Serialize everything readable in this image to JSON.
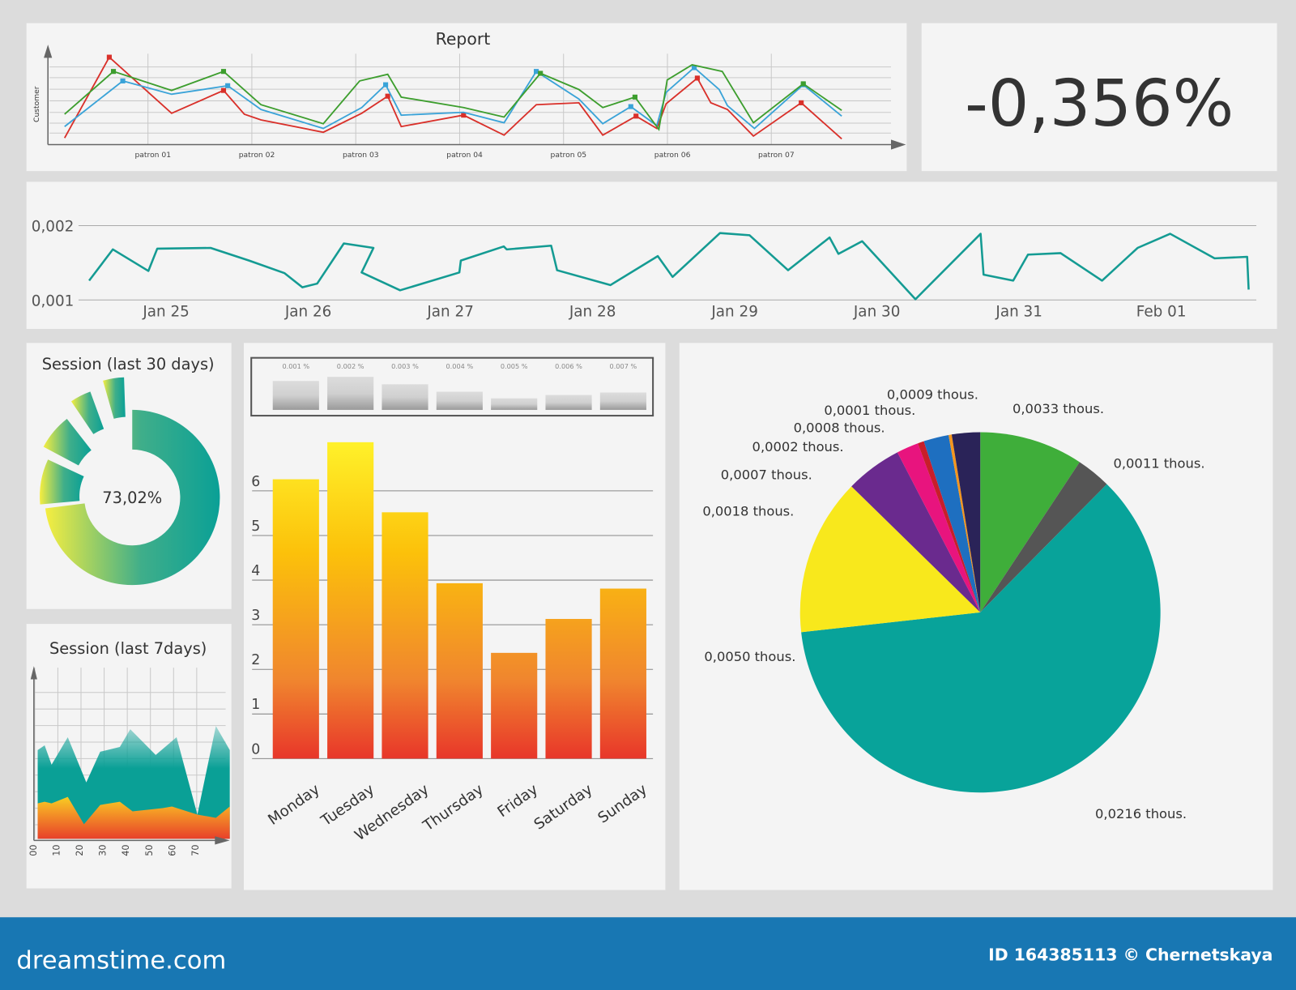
{
  "colors": {
    "background": "#dcdcdc",
    "panel": "#f4f4f4",
    "footer": "#1877b3",
    "teal": "#0aa096",
    "yellow": "#f8ec20",
    "orange": "#f08a2a",
    "red": "#e8362a"
  },
  "kpi": {
    "value": "-0,356%"
  },
  "footer": {
    "brand": "dreamstime.com",
    "credit": "ID 164385113 © Chernetskaya"
  },
  "chart_data": [
    {
      "id": "report",
      "type": "line",
      "title": "Report",
      "ylabel": "Customer",
      "categories": [
        "patron 01",
        "patron 02",
        "patron 03",
        "patron 04",
        "patron 05",
        "patron 06",
        "patron 07"
      ],
      "ylim": [
        0,
        100
      ],
      "grid": true,
      "series": [
        {
          "color": "#d9302a",
          "points": [
            [
              0.15,
              7
            ],
            [
              0.58,
              92
            ],
            [
              1.18,
              33
            ],
            [
              1.68,
              57
            ],
            [
              1.88,
              32
            ],
            [
              2.04,
              26
            ],
            [
              2.64,
              13
            ],
            [
              3.01,
              33
            ],
            [
              3.26,
              51
            ],
            [
              3.39,
              19
            ],
            [
              3.99,
              31
            ],
            [
              4.38,
              10
            ],
            [
              4.69,
              42
            ],
            [
              5.1,
              44
            ],
            [
              5.33,
              10
            ],
            [
              5.65,
              30
            ],
            [
              5.85,
              17
            ],
            [
              5.94,
              43
            ],
            [
              6.24,
              70
            ],
            [
              6.37,
              44
            ],
            [
              6.53,
              37
            ],
            [
              6.78,
              9
            ],
            [
              7.24,
              44
            ],
            [
              7.63,
              6
            ]
          ]
        },
        {
          "color": "#3aa3d8",
          "points": [
            [
              0.15,
              19
            ],
            [
              0.71,
              67
            ],
            [
              1.18,
              53
            ],
            [
              1.72,
              62
            ],
            [
              2.04,
              37
            ],
            [
              2.64,
              17
            ],
            [
              3.01,
              39
            ],
            [
              3.24,
              63
            ],
            [
              3.39,
              31
            ],
            [
              3.99,
              34
            ],
            [
              4.38,
              23
            ],
            [
              4.69,
              77
            ],
            [
              5.1,
              48
            ],
            [
              5.33,
              22
            ],
            [
              5.6,
              40
            ],
            [
              5.85,
              20
            ],
            [
              5.94,
              55
            ],
            [
              6.21,
              81
            ],
            [
              6.45,
              58
            ],
            [
              6.53,
              41
            ],
            [
              6.79,
              17
            ],
            [
              7.26,
              63
            ],
            [
              7.63,
              30
            ]
          ]
        },
        {
          "color": "#3d9e2e",
          "points": [
            [
              0.15,
              32
            ],
            [
              0.62,
              77
            ],
            [
              1.18,
              57
            ],
            [
              1.68,
              77
            ],
            [
              2.04,
              42
            ],
            [
              2.64,
              22
            ],
            [
              2.99,
              67
            ],
            [
              3.26,
              74
            ],
            [
              3.39,
              50
            ],
            [
              3.99,
              39
            ],
            [
              4.38,
              29
            ],
            [
              4.73,
              75
            ],
            [
              5.1,
              58
            ],
            [
              5.33,
              39
            ],
            [
              5.64,
              50
            ],
            [
              5.87,
              16
            ],
            [
              5.95,
              68
            ],
            [
              6.19,
              84
            ],
            [
              6.48,
              77
            ],
            [
              6.78,
              23
            ],
            [
              7.26,
              64
            ],
            [
              7.63,
              36
            ]
          ]
        }
      ]
    },
    {
      "id": "timeline",
      "type": "line",
      "color": "#149b93",
      "yticks": [
        "0,001",
        "0,002"
      ],
      "ylim": [
        0.001,
        0.002
      ],
      "xticks": [
        "Jan 25",
        "Jan 26",
        "Jan 27",
        "Jan 28",
        "Jan 29",
        "Jan 30",
        "Jan 31",
        "Feb 01"
      ],
      "grid": true,
      "points": [
        [
          "Jan 24 11:00",
          0.00126
        ],
        [
          "Jan 24 15:00",
          0.00168
        ],
        [
          "Jan 24 21:00",
          0.00139
        ],
        [
          "Jan 24 22:30",
          0.00169
        ],
        [
          "Jan 25 07:30",
          0.0017
        ],
        [
          "Jan 25 14:00",
          0.00153
        ],
        [
          "Jan 25 20:00",
          0.00136
        ],
        [
          "Jan 25 23:00",
          0.00117
        ],
        [
          "Jan 26 01:30",
          0.00122
        ],
        [
          "Jan 26 06:00",
          0.00176
        ],
        [
          "Jan 26 11:00",
          0.0017
        ],
        [
          "Jan 26 09:00",
          0.00137
        ],
        [
          "Jan 26 15:30",
          0.00113
        ],
        [
          "Jan 27 01:30",
          0.00137
        ],
        [
          "Jan 27 01:45",
          0.00153
        ],
        [
          "Jan 27 09:00",
          0.00172
        ],
        [
          "Jan 27 09:30",
          0.00168
        ],
        [
          "Jan 27 17:00",
          0.00173
        ],
        [
          "Jan 27 18:00",
          0.0014
        ],
        [
          "Jan 28 03:00",
          0.0012
        ],
        [
          "Jan 28 11:00",
          0.00159
        ],
        [
          "Jan 28 13:30",
          0.00131
        ],
        [
          "Jan 28 21:30",
          0.0019
        ],
        [
          "Jan 29 02:30",
          0.00187
        ],
        [
          "Jan 29 09:00",
          0.0014
        ],
        [
          "Jan 29 16:00",
          0.00184
        ],
        [
          "Jan 29 17:30",
          0.00162
        ],
        [
          "Jan 29 21:30",
          0.00179
        ],
        [
          "Jan 30 06:30",
          0.00101
        ],
        [
          "Jan 30 17:30",
          0.00189
        ],
        [
          "Jan 30 18:00",
          0.00134
        ],
        [
          "Jan 30 23:00",
          0.00126
        ],
        [
          "Jan 31 01:30",
          0.00161
        ],
        [
          "Jan 31 07:00",
          0.00163
        ],
        [
          "Jan 31 14:00",
          0.00126
        ],
        [
          "Jan 31 20:00",
          0.0017
        ],
        [
          "Feb 01 01:30",
          0.00189
        ],
        [
          "Feb 01 09:00",
          0.00156
        ],
        [
          "Feb 01 14:30",
          0.00158
        ],
        [
          "Feb 01 14:45",
          0.00114
        ]
      ]
    },
    {
      "id": "session30",
      "type": "pie",
      "title": "Session (last 30 days)",
      "value": 73.02,
      "label": "73,02%"
    },
    {
      "id": "session7",
      "type": "area",
      "title": "Session (last 7days)",
      "xticks": [
        "00",
        "10",
        "20",
        "30",
        "40",
        "50",
        "60",
        "70"
      ],
      "ylim": [
        0,
        100
      ],
      "grid": true,
      "series": [
        {
          "color": "#0aa096",
          "points": [
            [
              2,
              55
            ],
            [
              5,
              58
            ],
            [
              8,
              46
            ],
            [
              15,
              63
            ],
            [
              23,
              35
            ],
            [
              29,
              54
            ],
            [
              37.5,
              57
            ],
            [
              42,
              68
            ],
            [
              53,
              52
            ],
            [
              62,
              63
            ],
            [
              71,
              15
            ],
            [
              79,
              70
            ],
            [
              85,
              55
            ]
          ]
        },
        {
          "color": "#f8e020",
          "points": [
            [
              2,
              22
            ],
            [
              5,
              23
            ],
            [
              8,
              22
            ],
            [
              15,
              26
            ],
            [
              22,
              9
            ],
            [
              29,
              21
            ],
            [
              37.5,
              23
            ],
            [
              43,
              17
            ],
            [
              56,
              19
            ],
            [
              60,
              20
            ],
            [
              71,
              15
            ],
            [
              79,
              13
            ],
            [
              85,
              20
            ]
          ]
        }
      ]
    },
    {
      "id": "mini-bars",
      "type": "bar",
      "categories": [
        "0.001 %",
        "0.002 %",
        "0.003 %",
        "0.004 %",
        "0.005 %",
        "0.006 %",
        "0.007 %"
      ],
      "values": [
        35,
        40,
        31,
        22,
        14,
        18,
        21
      ]
    },
    {
      "id": "weekly",
      "type": "bar",
      "categories": [
        "Monday",
        "Tuesday",
        "Wednesday",
        "Thursday",
        "Friday",
        "Saturday",
        "Sunday"
      ],
      "values": [
        6.26,
        7.09,
        5.52,
        3.93,
        2.37,
        3.13,
        3.81
      ],
      "yticks": [
        "0",
        "1",
        "2",
        "3",
        "4",
        "5",
        "6"
      ],
      "ylim": [
        0,
        7.2
      ],
      "grid": true
    },
    {
      "id": "breakdown",
      "type": "pie",
      "slices": [
        {
          "label": "0,0033 thous.",
          "value": 0.0033,
          "color": "#3fae3a"
        },
        {
          "label": "0,0011 thous.",
          "value": 0.0011,
          "color": "#555555"
        },
        {
          "label": "0,0216 thous.",
          "value": 0.0216,
          "color": "#08a39a"
        },
        {
          "label": "0,0050 thous.",
          "value": 0.005,
          "color": "#f8e81c"
        },
        {
          "label": "0,0018 thous.",
          "value": 0.0018,
          "color": "#6a2a8e"
        },
        {
          "label": "0,0007 thous.",
          "value": 0.0007,
          "color": "#e8147e"
        },
        {
          "label": "0,0002 thous.",
          "value": 0.0002,
          "color": "#c81e2a"
        },
        {
          "label": "0,0008 thous.",
          "value": 0.0008,
          "color": "#1e6fc0"
        },
        {
          "label": "0,0001 thous.",
          "value": 0.0001,
          "color": "#f4961e"
        },
        {
          "label": "0,0009 thous.",
          "value": 0.0009,
          "color": "#2a2358"
        }
      ]
    }
  ]
}
